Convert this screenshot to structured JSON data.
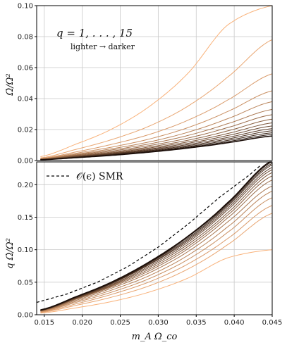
{
  "chart_data": [
    {
      "type": "line",
      "panel": "top",
      "ylabel": "Ω̇/Ω²",
      "xlabel": "",
      "xlim": [
        0.014,
        0.045
      ],
      "ylim": [
        0,
        0.1
      ],
      "xticks": [],
      "yticks": [
        "0.00",
        "0.02",
        "0.04",
        "0.06",
        "0.08",
        "0.10"
      ],
      "grid": true,
      "annotation_main": "q = 1, . . . , 15",
      "annotation_sub": "lighter → darker",
      "series": [
        {
          "q": 1,
          "values": [
            0.0025,
            0.0103,
            0.0206,
            0.0355,
            0.0568,
            0.087,
            0.1
          ]
        },
        {
          "q": 2,
          "values": [
            0.0017,
            0.007,
            0.0137,
            0.0226,
            0.0354,
            0.0534,
            0.078
          ]
        },
        {
          "q": 3,
          "values": [
            0.0014,
            0.0054,
            0.0106,
            0.0171,
            0.0262,
            0.0387,
            0.056
          ]
        },
        {
          "q": 4,
          "values": [
            0.0012,
            0.0046,
            0.0088,
            0.0141,
            0.0214,
            0.0314,
            0.045
          ]
        },
        {
          "q": 5,
          "values": [
            0.0011,
            0.004,
            0.0077,
            0.0122,
            0.0184,
            0.0268,
            0.038
          ]
        },
        {
          "q": 6,
          "values": [
            0.001,
            0.0036,
            0.0069,
            0.0109,
            0.0163,
            0.0236,
            0.033
          ]
        },
        {
          "q": 7,
          "values": [
            0.0009,
            0.0033,
            0.0062,
            0.0098,
            0.0146,
            0.0211,
            0.0296
          ]
        },
        {
          "q": 8,
          "values": [
            0.0008,
            0.003,
            0.0056,
            0.0089,
            0.0132,
            0.019,
            0.0267
          ]
        },
        {
          "q": 9,
          "values": [
            0.0007,
            0.0027,
            0.0051,
            0.0082,
            0.0121,
            0.0173,
            0.0243
          ]
        },
        {
          "q": 10,
          "values": [
            0.0007,
            0.0025,
            0.0047,
            0.0076,
            0.0112,
            0.016,
            0.0223
          ]
        },
        {
          "q": 11,
          "values": [
            0.0006,
            0.0023,
            0.0044,
            0.0071,
            0.0104,
            0.0148,
            0.0206
          ]
        },
        {
          "q": 12,
          "values": [
            0.0006,
            0.0022,
            0.0041,
            0.0066,
            0.0097,
            0.0138,
            0.0192
          ]
        },
        {
          "q": 13,
          "values": [
            0.0005,
            0.002,
            0.0038,
            0.0062,
            0.0091,
            0.0129,
            0.0179
          ]
        },
        {
          "q": 14,
          "values": [
            0.0005,
            0.0019,
            0.0036,
            0.0058,
            0.0086,
            0.0121,
            0.0168
          ]
        },
        {
          "q": 15,
          "values": [
            0.0005,
            0.0018,
            0.0034,
            0.0055,
            0.0081,
            0.0114,
            0.0158
          ]
        }
      ]
    },
    {
      "type": "line",
      "panel": "bottom",
      "ylabel": "q Ω̇/Ω²",
      "xlabel": "m_A Ω_co",
      "xlim": [
        0.014,
        0.045
      ],
      "ylim": [
        0,
        0.235
      ],
      "xticks": [
        "0.015",
        "0.020",
        "0.025",
        "0.030",
        "0.035",
        "0.040",
        "0.045"
      ],
      "yticks": [
        "0.00",
        "0.05",
        "0.10",
        "0.15",
        "0.20"
      ],
      "grid": true,
      "legend": {
        "location": "top-left",
        "label": "𝒪(ϵ) SMR",
        "style": "dashed"
      },
      "smr_reference": {
        "x": [
          0.014,
          0.018,
          0.022,
          0.026,
          0.03,
          0.034,
          0.038,
          0.042,
          0.0435
        ],
        "values": [
          0.019,
          0.032,
          0.05,
          0.074,
          0.104,
          0.14,
          0.18,
          0.215,
          0.23
        ]
      },
      "series_scaled": [
        {
          "q": 1,
          "values": [
            0.0025,
            0.0103,
            0.0206,
            0.0355,
            0.0568,
            0.087,
            0.1
          ]
        },
        {
          "q": 2,
          "values": [
            0.0034,
            0.014,
            0.0274,
            0.0452,
            0.0708,
            0.1068,
            0.156
          ]
        },
        {
          "q": 3,
          "values": [
            0.0042,
            0.0162,
            0.0318,
            0.0513,
            0.0786,
            0.1161,
            0.168
          ]
        },
        {
          "q": 4,
          "values": [
            0.0048,
            0.0184,
            0.0352,
            0.0564,
            0.0856,
            0.1256,
            0.18
          ]
        },
        {
          "q": 5,
          "values": [
            0.0055,
            0.02,
            0.0385,
            0.061,
            0.092,
            0.134,
            0.19
          ]
        },
        {
          "q": 6,
          "values": [
            0.006,
            0.0216,
            0.0414,
            0.0654,
            0.0978,
            0.1416,
            0.198
          ]
        },
        {
          "q": 7,
          "values": [
            0.0063,
            0.0231,
            0.0434,
            0.0686,
            0.1022,
            0.1477,
            0.2072
          ]
        },
        {
          "q": 8,
          "values": [
            0.0064,
            0.024,
            0.0448,
            0.0712,
            0.1056,
            0.152,
            0.2136
          ]
        },
        {
          "q": 9,
          "values": [
            0.0063,
            0.0243,
            0.0459,
            0.0738,
            0.1089,
            0.1557,
            0.2187
          ]
        },
        {
          "q": 10,
          "values": [
            0.007,
            0.025,
            0.047,
            0.076,
            0.112,
            0.16,
            0.223
          ]
        },
        {
          "q": 11,
          "values": [
            0.0066,
            0.0253,
            0.0484,
            0.0781,
            0.1144,
            0.1628,
            0.2266
          ]
        },
        {
          "q": 12,
          "values": [
            0.0072,
            0.0264,
            0.0492,
            0.0792,
            0.1164,
            0.1656,
            0.2304
          ]
        },
        {
          "q": 13,
          "values": [
            0.0065,
            0.026,
            0.0494,
            0.0806,
            0.1183,
            0.1677,
            0.2327
          ]
        },
        {
          "q": 14,
          "values": [
            0.007,
            0.0266,
            0.0504,
            0.0812,
            0.1204,
            0.1694,
            0.2352
          ]
        },
        {
          "q": 15,
          "values": [
            0.0075,
            0.027,
            0.051,
            0.0825,
            0.1215,
            0.171,
            0.237
          ]
        }
      ],
      "x_samples": [
        0.0145,
        0.019,
        0.024,
        0.029,
        0.034,
        0.039,
        0.045
      ]
    }
  ],
  "colors": {
    "lightest": "#f9b27a",
    "darkest": "#1a0d08",
    "grid": "#c9c9c9",
    "frame": "#000000"
  }
}
